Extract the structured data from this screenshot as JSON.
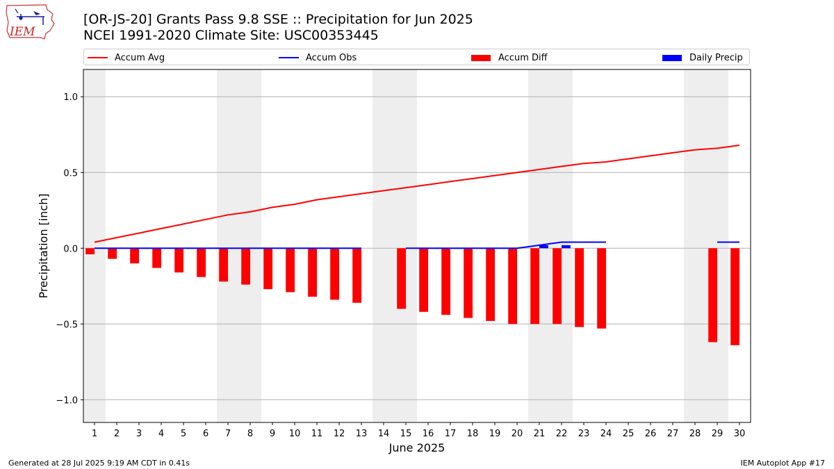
{
  "header": {
    "title": "[OR-JS-20] Grants Pass 9.8 SSE :: Precipitation for Jun 2025",
    "subtitle": "NCEI 1991-2020 Climate Site: USC00353445"
  },
  "logo": {
    "text": "IEM",
    "icon": "iem-iowa-map-logo"
  },
  "legend": {
    "placement": "top",
    "items": [
      {
        "label": "Accum Avg",
        "kind": "line",
        "color": "#ff0000"
      },
      {
        "label": "Accum Obs",
        "kind": "line",
        "color": "#0000ff"
      },
      {
        "label": "Accum Diff",
        "kind": "bar",
        "color": "#ff0000"
      },
      {
        "label": "Daily Precip",
        "kind": "bar",
        "color": "#0000ff"
      }
    ]
  },
  "footer": {
    "left": "Generated at 28 Jul 2025 9:19 AM CDT in 0.41s",
    "right": "IEM Autoplot App #17"
  },
  "chart_data": {
    "type": "bar",
    "xlabel": "June 2025",
    "ylabel": "Precipitation [inch]",
    "ylim": [
      -1.15,
      1.18
    ],
    "xlim": [
      0.5,
      30.5
    ],
    "yticks": [
      1.0,
      0.5,
      0.0,
      -0.5,
      -1.0
    ],
    "ytick_labels": [
      "1.0",
      "0.5",
      "0.0",
      "−0.5",
      "−1.0"
    ],
    "grid": "horizontal",
    "x": [
      1,
      2,
      3,
      4,
      5,
      6,
      7,
      8,
      9,
      10,
      11,
      12,
      13,
      14,
      15,
      16,
      17,
      18,
      19,
      20,
      21,
      22,
      23,
      24,
      25,
      26,
      27,
      28,
      29,
      30
    ],
    "weekend_days": [
      1,
      7,
      8,
      14,
      15,
      21,
      22,
      28,
      29
    ],
    "series": [
      {
        "name": "Accum Avg",
        "kind": "line",
        "color": "#ff0000",
        "values": [
          0.04,
          0.07,
          0.1,
          0.13,
          0.16,
          0.19,
          0.22,
          0.24,
          0.27,
          0.29,
          0.32,
          0.34,
          0.36,
          0.38,
          0.4,
          0.42,
          0.44,
          0.46,
          0.48,
          0.5,
          0.52,
          0.54,
          0.56,
          0.57,
          0.59,
          0.61,
          0.63,
          0.65,
          0.66,
          0.68
        ]
      },
      {
        "name": "Accum Obs",
        "kind": "line",
        "color": "#0000ff",
        "values": [
          0,
          0,
          0,
          0,
          0,
          0,
          0,
          0,
          0,
          0,
          0,
          0,
          0,
          null,
          0,
          0,
          0,
          0,
          0,
          0,
          0.02,
          0.04,
          0.04,
          0.04,
          null,
          null,
          null,
          null,
          0.04,
          0.04
        ]
      },
      {
        "name": "Accum Diff",
        "kind": "bar",
        "color": "#ff0000",
        "values": [
          -0.04,
          -0.07,
          -0.1,
          -0.13,
          -0.16,
          -0.19,
          -0.22,
          -0.24,
          -0.27,
          -0.29,
          -0.32,
          -0.34,
          -0.36,
          null,
          -0.4,
          -0.42,
          -0.44,
          -0.46,
          -0.48,
          -0.5,
          -0.5,
          -0.5,
          -0.52,
          -0.53,
          null,
          null,
          null,
          null,
          -0.62,
          -0.64
        ]
      },
      {
        "name": "Daily Precip",
        "kind": "bar",
        "color": "#0000ff",
        "values": [
          0,
          0,
          0,
          0,
          0,
          0,
          0,
          0,
          0,
          0,
          0,
          0,
          0,
          null,
          0,
          0,
          0,
          0,
          0,
          0,
          0.02,
          0.02,
          0,
          0,
          null,
          null,
          null,
          null,
          0,
          0
        ]
      }
    ]
  }
}
